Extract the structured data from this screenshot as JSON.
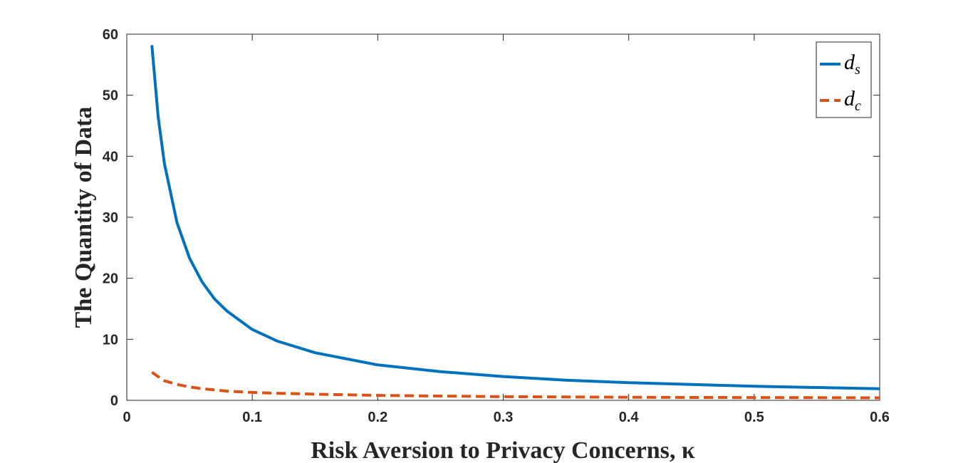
{
  "chart_data": {
    "type": "line",
    "xlabel": "Risk Aversion to Privacy Concerns, κ",
    "ylabel": "The Quantity of Data",
    "xlim": [
      0,
      0.6
    ],
    "ylim": [
      0,
      60
    ],
    "xticks": [
      0,
      0.1,
      0.2,
      0.3,
      0.4,
      0.5,
      0.6
    ],
    "xtick_labels": [
      "0",
      "0.1",
      "0.2",
      "0.3",
      "0.4",
      "0.5",
      "0.6"
    ],
    "yticks": [
      0,
      10,
      20,
      30,
      40,
      50,
      60
    ],
    "ytick_labels": [
      "0",
      "10",
      "20",
      "30",
      "40",
      "50",
      "60"
    ],
    "grid": false,
    "legend_position": "top-right",
    "series": [
      {
        "name": "d",
        "subscript": "s",
        "color": "#0072BD",
        "style": "solid",
        "x": [
          0.02,
          0.025,
          0.03,
          0.04,
          0.05,
          0.06,
          0.07,
          0.08,
          0.1,
          0.12,
          0.15,
          0.2,
          0.25,
          0.3,
          0.35,
          0.4,
          0.45,
          0.5,
          0.55,
          0.6
        ],
        "y": [
          58.2,
          46.5,
          38.8,
          29.1,
          23.3,
          19.4,
          16.6,
          14.6,
          11.6,
          9.7,
          7.8,
          5.8,
          4.7,
          3.9,
          3.3,
          2.9,
          2.6,
          2.3,
          2.1,
          1.9
        ]
      },
      {
        "name": "d",
        "subscript": "c",
        "color": "#D95319",
        "style": "dashed",
        "x": [
          0.02,
          0.03,
          0.04,
          0.05,
          0.06,
          0.08,
          0.1,
          0.12,
          0.15,
          0.2,
          0.25,
          0.3,
          0.35,
          0.4,
          0.45,
          0.5,
          0.55,
          0.6
        ],
        "y": [
          4.6,
          3.2,
          2.6,
          2.2,
          1.9,
          1.5,
          1.3,
          1.15,
          1.0,
          0.8,
          0.7,
          0.6,
          0.55,
          0.5,
          0.47,
          0.45,
          0.43,
          0.41
        ]
      }
    ]
  }
}
